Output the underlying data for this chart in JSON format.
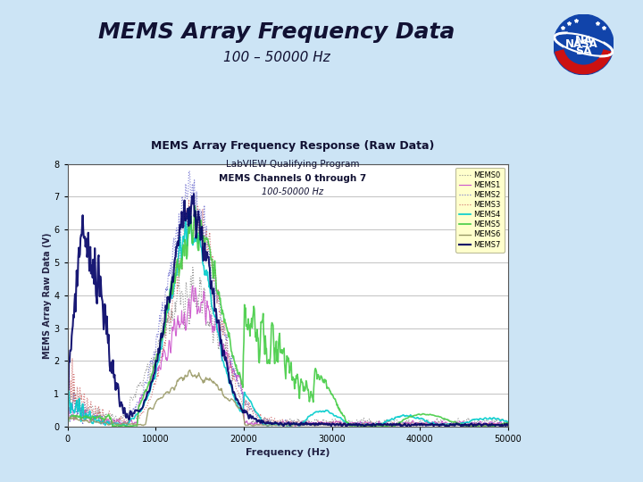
{
  "title": "MEMS Array Frequency Data",
  "subtitle": "100 – 50000 Hz",
  "plot_title": "MEMS Array Frequency Response (Raw Data)",
  "plot_subtitle1": "LabVIEW Qualifying Program",
  "plot_subtitle2": "MEMS Channels 0 through 7",
  "plot_subtitle3": "100-50000 Hz",
  "xlabel": "Frequency (Hz)",
  "ylabel": "MEMS Array Raw Data (V)",
  "xlim": [
    0,
    50000
  ],
  "ylim": [
    0,
    8
  ],
  "xticks": [
    0,
    10000,
    20000,
    30000,
    40000,
    50000
  ],
  "ytick_labels": [
    "0",
    "1",
    "2",
    "3",
    "4",
    "5",
    "6",
    "7",
    "8"
  ],
  "bg_color": "#cce4f5",
  "plot_bg_color": "#ffffff",
  "legend_bg_color": "#ffffcc",
  "channels": [
    "MEMS0",
    "MEMS1",
    "MEMS2",
    "MEMS3",
    "MEMS4",
    "MEMS5",
    "MEMS6",
    "MEMS7"
  ],
  "colors": [
    "#888888",
    "#cc55cc",
    "#6666cc",
    "#cc6666",
    "#00cccc",
    "#44cc44",
    "#999966",
    "#000066"
  ],
  "line_styles": [
    "dotted",
    "solid",
    "dotted",
    "dotted",
    "solid",
    "solid",
    "solid",
    "solid"
  ],
  "line_widths": [
    0.8,
    0.8,
    0.8,
    0.8,
    1.2,
    1.2,
    1.0,
    1.5
  ],
  "title_fontsize": 18,
  "subtitle_fontsize": 11,
  "plot_bg_left": "#d8eef8",
  "plot_bg_right": "#d8eef8"
}
